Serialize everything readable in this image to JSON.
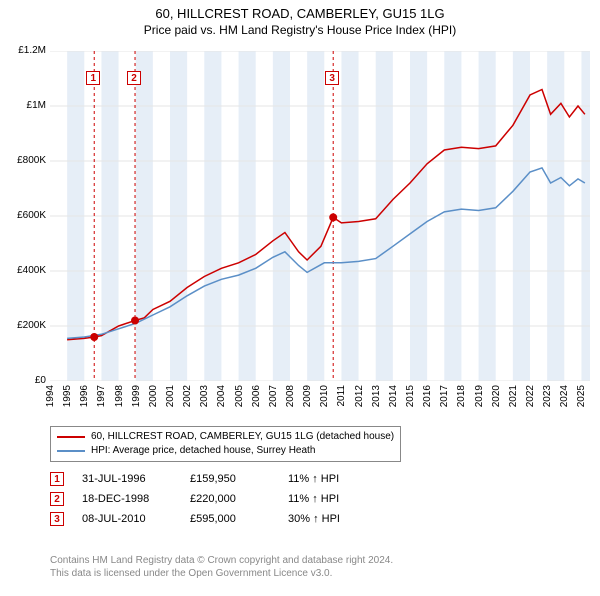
{
  "title": "60, HILLCREST ROAD, CAMBERLEY, GU15 1LG",
  "subtitle": "Price paid vs. HM Land Registry's House Price Index (HPI)",
  "chart": {
    "type": "line",
    "background_color": "#ffffff",
    "grid_color": "#e5e5e5",
    "band_color": "#e6eef7",
    "x_min": 1994,
    "x_max": 2025.5,
    "x_ticks": [
      1994,
      1995,
      1996,
      1997,
      1998,
      1999,
      2000,
      2001,
      2002,
      2003,
      2004,
      2005,
      2006,
      2007,
      2008,
      2009,
      2010,
      2011,
      2012,
      2013,
      2014,
      2015,
      2016,
      2017,
      2018,
      2019,
      2020,
      2021,
      2022,
      2023,
      2024,
      2025
    ],
    "y_min": 0,
    "y_max": 1200000,
    "y_ticks": [
      0,
      200000,
      400000,
      600000,
      800000,
      1000000,
      1200000
    ],
    "y_tick_labels": [
      "£0",
      "£200K",
      "£400K",
      "£600K",
      "£800K",
      "£1M",
      "£1.2M"
    ],
    "bands": [
      {
        "from": 1995,
        "to": 1996
      },
      {
        "from": 1997,
        "to": 1998
      },
      {
        "from": 1999,
        "to": 2000
      },
      {
        "from": 2001,
        "to": 2002
      },
      {
        "from": 2003,
        "to": 2004
      },
      {
        "from": 2005,
        "to": 2006
      },
      {
        "from": 2007,
        "to": 2008
      },
      {
        "from": 2009,
        "to": 2010
      },
      {
        "from": 2011,
        "to": 2012
      },
      {
        "from": 2013,
        "to": 2014
      },
      {
        "from": 2015,
        "to": 2016
      },
      {
        "from": 2017,
        "to": 2018
      },
      {
        "from": 2019,
        "to": 2020
      },
      {
        "from": 2021,
        "to": 2022
      },
      {
        "from": 2023,
        "to": 2024
      },
      {
        "from": 2025,
        "to": 2025.5
      }
    ],
    "series": [
      {
        "name": "property",
        "label": "60, HILLCREST ROAD, CAMBERLEY, GU15 1LG (detached house)",
        "color": "#cc0000",
        "line_width": 1.5,
        "points": [
          [
            1995,
            150000
          ],
          [
            1996,
            155000
          ],
          [
            1996.58,
            159950
          ],
          [
            1997,
            165000
          ],
          [
            1998,
            200000
          ],
          [
            1998.96,
            220000
          ],
          [
            1999.5,
            230000
          ],
          [
            2000,
            260000
          ],
          [
            2001,
            290000
          ],
          [
            2002,
            340000
          ],
          [
            2003,
            380000
          ],
          [
            2004,
            410000
          ],
          [
            2005,
            430000
          ],
          [
            2006,
            460000
          ],
          [
            2007,
            510000
          ],
          [
            2007.7,
            540000
          ],
          [
            2008.5,
            470000
          ],
          [
            2009,
            440000
          ],
          [
            2009.8,
            490000
          ],
          [
            2010.52,
            595000
          ],
          [
            2011,
            575000
          ],
          [
            2012,
            580000
          ],
          [
            2013,
            590000
          ],
          [
            2014,
            660000
          ],
          [
            2015,
            720000
          ],
          [
            2016,
            790000
          ],
          [
            2017,
            840000
          ],
          [
            2018,
            850000
          ],
          [
            2019,
            845000
          ],
          [
            2020,
            855000
          ],
          [
            2021,
            930000
          ],
          [
            2022,
            1040000
          ],
          [
            2022.7,
            1060000
          ],
          [
            2023.2,
            970000
          ],
          [
            2023.8,
            1010000
          ],
          [
            2024.3,
            960000
          ],
          [
            2024.8,
            1000000
          ],
          [
            2025.2,
            970000
          ]
        ]
      },
      {
        "name": "hpi",
        "label": "HPI: Average price, detached house, Surrey Heath",
        "color": "#5b8fc7",
        "line_width": 1.5,
        "points": [
          [
            1995,
            155000
          ],
          [
            1996,
            160000
          ],
          [
            1997,
            170000
          ],
          [
            1998,
            190000
          ],
          [
            1999,
            210000
          ],
          [
            2000,
            240000
          ],
          [
            2001,
            270000
          ],
          [
            2002,
            310000
          ],
          [
            2003,
            345000
          ],
          [
            2004,
            370000
          ],
          [
            2005,
            385000
          ],
          [
            2006,
            410000
          ],
          [
            2007,
            450000
          ],
          [
            2007.7,
            470000
          ],
          [
            2008.5,
            420000
          ],
          [
            2009,
            395000
          ],
          [
            2010,
            430000
          ],
          [
            2011,
            430000
          ],
          [
            2012,
            435000
          ],
          [
            2013,
            445000
          ],
          [
            2014,
            490000
          ],
          [
            2015,
            535000
          ],
          [
            2016,
            580000
          ],
          [
            2017,
            615000
          ],
          [
            2018,
            625000
          ],
          [
            2019,
            620000
          ],
          [
            2020,
            630000
          ],
          [
            2021,
            690000
          ],
          [
            2022,
            760000
          ],
          [
            2022.7,
            775000
          ],
          [
            2023.2,
            720000
          ],
          [
            2023.8,
            740000
          ],
          [
            2024.3,
            710000
          ],
          [
            2024.8,
            735000
          ],
          [
            2025.2,
            720000
          ]
        ]
      }
    ],
    "sale_markers": [
      {
        "n": "1",
        "x": 1996.58,
        "y": 159950,
        "dash_color": "#cc0000"
      },
      {
        "n": "2",
        "x": 1998.96,
        "y": 220000,
        "dash_color": "#cc0000"
      },
      {
        "n": "3",
        "x": 2010.52,
        "y": 595000,
        "dash_color": "#cc0000"
      }
    ],
    "sale_dot_color": "#cc0000",
    "sale_dot_radius": 4,
    "marker_label_y_offset": 20
  },
  "legend": {
    "items": [
      {
        "color": "#cc0000",
        "label": "60, HILLCREST ROAD, CAMBERLEY, GU15 1LG (detached house)"
      },
      {
        "color": "#5b8fc7",
        "label": "HPI: Average price, detached house, Surrey Heath"
      }
    ]
  },
  "sales": [
    {
      "n": "1",
      "date": "31-JUL-1996",
      "price": "£159,950",
      "pct": "11% ↑ HPI"
    },
    {
      "n": "2",
      "date": "18-DEC-1998",
      "price": "£220,000",
      "pct": "11% ↑ HPI"
    },
    {
      "n": "3",
      "date": "08-JUL-2010",
      "price": "£595,000",
      "pct": "30% ↑ HPI"
    }
  ],
  "attribution": {
    "line1": "Contains HM Land Registry data © Crown copyright and database right 2024.",
    "line2": "This data is licensed under the Open Government Licence v3.0."
  }
}
